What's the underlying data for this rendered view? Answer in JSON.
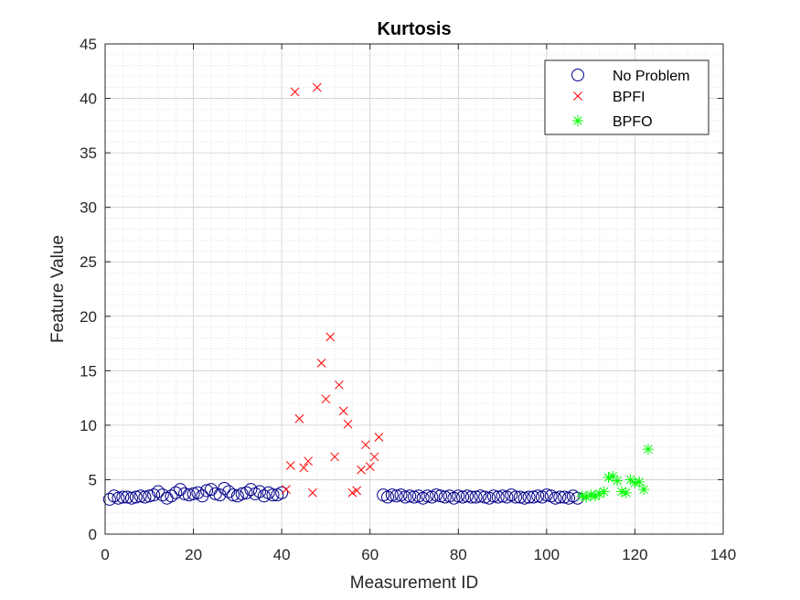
{
  "chart_data": {
    "type": "scatter",
    "title": "Kurtosis",
    "xlabel": "Measurement ID",
    "ylabel": "Feature Value",
    "xlim": [
      0,
      140
    ],
    "ylim": [
      0,
      45
    ],
    "xticks": [
      0,
      20,
      40,
      60,
      80,
      100,
      120,
      140
    ],
    "yticks": [
      0,
      5,
      10,
      15,
      20,
      25,
      30,
      35,
      40,
      45
    ],
    "grid": true,
    "minor_grid": true,
    "legend_position": "top-right",
    "series": [
      {
        "name": "No Problem",
        "marker": "circle",
        "color": "#00008B",
        "points": [
          [
            1,
            3.2
          ],
          [
            2,
            3.5
          ],
          [
            3,
            3.3
          ],
          [
            4,
            3.4
          ],
          [
            5,
            3.4
          ],
          [
            6,
            3.3
          ],
          [
            7,
            3.4
          ],
          [
            8,
            3.5
          ],
          [
            9,
            3.4
          ],
          [
            10,
            3.5
          ],
          [
            11,
            3.6
          ],
          [
            12,
            3.9
          ],
          [
            13,
            3.6
          ],
          [
            14,
            3.3
          ],
          [
            15,
            3.5
          ],
          [
            16,
            3.8
          ],
          [
            17,
            4.1
          ],
          [
            18,
            3.7
          ],
          [
            19,
            3.6
          ],
          [
            20,
            3.7
          ],
          [
            21,
            3.8
          ],
          [
            22,
            3.5
          ],
          [
            23,
            4.0
          ],
          [
            24,
            4.1
          ],
          [
            25,
            3.7
          ],
          [
            26,
            3.6
          ],
          [
            27,
            4.2
          ],
          [
            28,
            3.9
          ],
          [
            29,
            3.6
          ],
          [
            30,
            3.5
          ],
          [
            31,
            3.7
          ],
          [
            32,
            3.8
          ],
          [
            33,
            4.1
          ],
          [
            34,
            3.7
          ],
          [
            35,
            3.9
          ],
          [
            36,
            3.5
          ],
          [
            37,
            3.8
          ],
          [
            38,
            3.6
          ],
          [
            39,
            3.6
          ],
          [
            40,
            3.8
          ],
          [
            63,
            3.6
          ],
          [
            64,
            3.4
          ],
          [
            65,
            3.6
          ],
          [
            66,
            3.5
          ],
          [
            67,
            3.6
          ],
          [
            68,
            3.4
          ],
          [
            69,
            3.5
          ],
          [
            70,
            3.4
          ],
          [
            71,
            3.5
          ],
          [
            72,
            3.3
          ],
          [
            73,
            3.5
          ],
          [
            74,
            3.4
          ],
          [
            75,
            3.6
          ],
          [
            76,
            3.5
          ],
          [
            77,
            3.4
          ],
          [
            78,
            3.5
          ],
          [
            79,
            3.3
          ],
          [
            80,
            3.5
          ],
          [
            81,
            3.4
          ],
          [
            82,
            3.5
          ],
          [
            83,
            3.4
          ],
          [
            84,
            3.4
          ],
          [
            85,
            3.5
          ],
          [
            86,
            3.4
          ],
          [
            87,
            3.3
          ],
          [
            88,
            3.5
          ],
          [
            89,
            3.4
          ],
          [
            90,
            3.5
          ],
          [
            91,
            3.4
          ],
          [
            92,
            3.6
          ],
          [
            93,
            3.4
          ],
          [
            94,
            3.4
          ],
          [
            95,
            3.3
          ],
          [
            96,
            3.4
          ],
          [
            97,
            3.4
          ],
          [
            98,
            3.5
          ],
          [
            99,
            3.4
          ],
          [
            100,
            3.6
          ],
          [
            101,
            3.5
          ],
          [
            102,
            3.3
          ],
          [
            103,
            3.4
          ],
          [
            104,
            3.4
          ],
          [
            105,
            3.3
          ],
          [
            106,
            3.5
          ],
          [
            107,
            3.3
          ]
        ]
      },
      {
        "name": "BPFI",
        "marker": "x",
        "color": "#FF0000",
        "points": [
          [
            41,
            4.1
          ],
          [
            42,
            6.3
          ],
          [
            43,
            40.6
          ],
          [
            44,
            10.6
          ],
          [
            45,
            6.1
          ],
          [
            46,
            6.7
          ],
          [
            47,
            3.8
          ],
          [
            48,
            41.0
          ],
          [
            49,
            15.7
          ],
          [
            50,
            12.4
          ],
          [
            51,
            18.1
          ],
          [
            52,
            7.1
          ],
          [
            53,
            13.7
          ],
          [
            54,
            11.3
          ],
          [
            55,
            10.1
          ],
          [
            56,
            3.8
          ],
          [
            57,
            4.0
          ],
          [
            58,
            5.9
          ],
          [
            59,
            8.2
          ],
          [
            60,
            6.2
          ],
          [
            61,
            7.1
          ],
          [
            62,
            8.9
          ]
        ]
      },
      {
        "name": "BPFO",
        "marker": "asterisk",
        "color": "#00FF00",
        "points": [
          [
            108,
            3.5
          ],
          [
            109,
            3.4
          ],
          [
            110,
            3.6
          ],
          [
            111,
            3.5
          ],
          [
            112,
            3.7
          ],
          [
            113,
            3.9
          ],
          [
            114,
            5.2
          ],
          [
            115,
            5.3
          ],
          [
            116,
            4.9
          ],
          [
            117,
            3.9
          ],
          [
            118,
            3.8
          ],
          [
            119,
            5.0
          ],
          [
            120,
            4.7
          ],
          [
            121,
            4.8
          ],
          [
            122,
            4.1
          ],
          [
            123,
            7.8
          ]
        ]
      }
    ]
  }
}
